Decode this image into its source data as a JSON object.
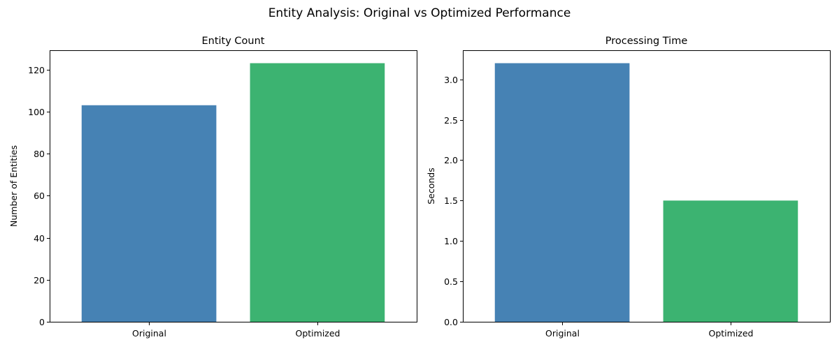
{
  "figure": {
    "title": "Entity Analysis: Original vs Optimized Performance"
  },
  "chart_data": [
    {
      "type": "bar",
      "title": "Entity Count",
      "xlabel": "",
      "ylabel": "Number of Entities",
      "categories": [
        "Original",
        "Optimized"
      ],
      "values": [
        103,
        123
      ],
      "colors": [
        "#4682b4",
        "#3cb371"
      ],
      "ylim": [
        0,
        129.15
      ],
      "yticks": [
        0,
        20,
        40,
        60,
        80,
        100,
        120
      ],
      "ytick_labels": [
        "0",
        "20",
        "40",
        "60",
        "80",
        "100",
        "120"
      ],
      "grid": false
    },
    {
      "type": "bar",
      "title": "Processing Time",
      "xlabel": "",
      "ylabel": "Seconds",
      "categories": [
        "Original",
        "Optimized"
      ],
      "values": [
        3.2,
        1.5
      ],
      "colors": [
        "#4682b4",
        "#3cb371"
      ],
      "ylim": [
        0,
        3.36
      ],
      "yticks": [
        0,
        0.5,
        1.0,
        1.5,
        2.0,
        2.5,
        3.0
      ],
      "ytick_labels": [
        "0.0",
        "0.5",
        "1.0",
        "1.5",
        "2.0",
        "2.5",
        "3.0"
      ],
      "grid": false
    }
  ]
}
